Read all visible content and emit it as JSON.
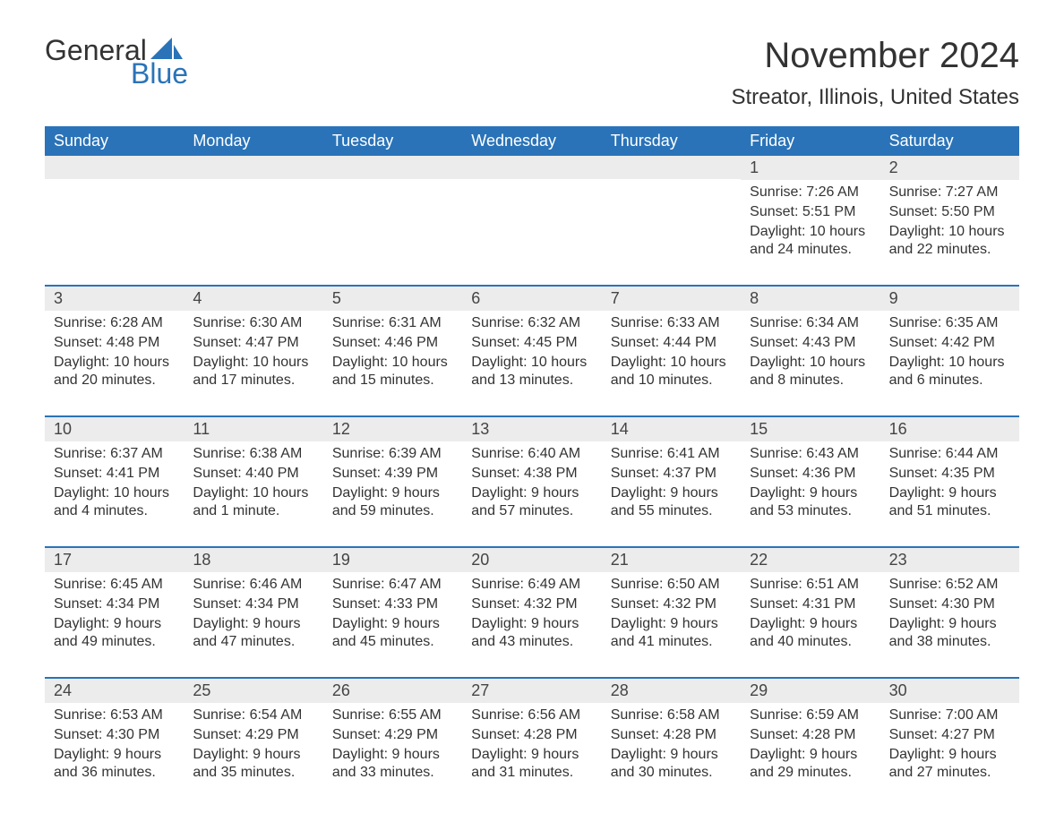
{
  "logo": {
    "text_general": "General",
    "text_blue": "Blue",
    "sail_color": "#2a73b8"
  },
  "title": "November 2024",
  "location": "Streator, Illinois, United States",
  "colors": {
    "header_bg": "#2a73b8",
    "header_text": "#ffffff",
    "daynum_bg": "#ececec",
    "week_border": "#2a73b8",
    "body_text": "#333333"
  },
  "weekdays": [
    "Sunday",
    "Monday",
    "Tuesday",
    "Wednesday",
    "Thursday",
    "Friday",
    "Saturday"
  ],
  "weeks": [
    [
      null,
      null,
      null,
      null,
      null,
      {
        "n": "1",
        "sunrise": "Sunrise: 7:26 AM",
        "sunset": "Sunset: 5:51 PM",
        "daylight": "Daylight: 10 hours and 24 minutes."
      },
      {
        "n": "2",
        "sunrise": "Sunrise: 7:27 AM",
        "sunset": "Sunset: 5:50 PM",
        "daylight": "Daylight: 10 hours and 22 minutes."
      }
    ],
    [
      {
        "n": "3",
        "sunrise": "Sunrise: 6:28 AM",
        "sunset": "Sunset: 4:48 PM",
        "daylight": "Daylight: 10 hours and 20 minutes."
      },
      {
        "n": "4",
        "sunrise": "Sunrise: 6:30 AM",
        "sunset": "Sunset: 4:47 PM",
        "daylight": "Daylight: 10 hours and 17 minutes."
      },
      {
        "n": "5",
        "sunrise": "Sunrise: 6:31 AM",
        "sunset": "Sunset: 4:46 PM",
        "daylight": "Daylight: 10 hours and 15 minutes."
      },
      {
        "n": "6",
        "sunrise": "Sunrise: 6:32 AM",
        "sunset": "Sunset: 4:45 PM",
        "daylight": "Daylight: 10 hours and 13 minutes."
      },
      {
        "n": "7",
        "sunrise": "Sunrise: 6:33 AM",
        "sunset": "Sunset: 4:44 PM",
        "daylight": "Daylight: 10 hours and 10 minutes."
      },
      {
        "n": "8",
        "sunrise": "Sunrise: 6:34 AM",
        "sunset": "Sunset: 4:43 PM",
        "daylight": "Daylight: 10 hours and 8 minutes."
      },
      {
        "n": "9",
        "sunrise": "Sunrise: 6:35 AM",
        "sunset": "Sunset: 4:42 PM",
        "daylight": "Daylight: 10 hours and 6 minutes."
      }
    ],
    [
      {
        "n": "10",
        "sunrise": "Sunrise: 6:37 AM",
        "sunset": "Sunset: 4:41 PM",
        "daylight": "Daylight: 10 hours and 4 minutes."
      },
      {
        "n": "11",
        "sunrise": "Sunrise: 6:38 AM",
        "sunset": "Sunset: 4:40 PM",
        "daylight": "Daylight: 10 hours and 1 minute."
      },
      {
        "n": "12",
        "sunrise": "Sunrise: 6:39 AM",
        "sunset": "Sunset: 4:39 PM",
        "daylight": "Daylight: 9 hours and 59 minutes."
      },
      {
        "n": "13",
        "sunrise": "Sunrise: 6:40 AM",
        "sunset": "Sunset: 4:38 PM",
        "daylight": "Daylight: 9 hours and 57 minutes."
      },
      {
        "n": "14",
        "sunrise": "Sunrise: 6:41 AM",
        "sunset": "Sunset: 4:37 PM",
        "daylight": "Daylight: 9 hours and 55 minutes."
      },
      {
        "n": "15",
        "sunrise": "Sunrise: 6:43 AM",
        "sunset": "Sunset: 4:36 PM",
        "daylight": "Daylight: 9 hours and 53 minutes."
      },
      {
        "n": "16",
        "sunrise": "Sunrise: 6:44 AM",
        "sunset": "Sunset: 4:35 PM",
        "daylight": "Daylight: 9 hours and 51 minutes."
      }
    ],
    [
      {
        "n": "17",
        "sunrise": "Sunrise: 6:45 AM",
        "sunset": "Sunset: 4:34 PM",
        "daylight": "Daylight: 9 hours and 49 minutes."
      },
      {
        "n": "18",
        "sunrise": "Sunrise: 6:46 AM",
        "sunset": "Sunset: 4:34 PM",
        "daylight": "Daylight: 9 hours and 47 minutes."
      },
      {
        "n": "19",
        "sunrise": "Sunrise: 6:47 AM",
        "sunset": "Sunset: 4:33 PM",
        "daylight": "Daylight: 9 hours and 45 minutes."
      },
      {
        "n": "20",
        "sunrise": "Sunrise: 6:49 AM",
        "sunset": "Sunset: 4:32 PM",
        "daylight": "Daylight: 9 hours and 43 minutes."
      },
      {
        "n": "21",
        "sunrise": "Sunrise: 6:50 AM",
        "sunset": "Sunset: 4:32 PM",
        "daylight": "Daylight: 9 hours and 41 minutes."
      },
      {
        "n": "22",
        "sunrise": "Sunrise: 6:51 AM",
        "sunset": "Sunset: 4:31 PM",
        "daylight": "Daylight: 9 hours and 40 minutes."
      },
      {
        "n": "23",
        "sunrise": "Sunrise: 6:52 AM",
        "sunset": "Sunset: 4:30 PM",
        "daylight": "Daylight: 9 hours and 38 minutes."
      }
    ],
    [
      {
        "n": "24",
        "sunrise": "Sunrise: 6:53 AM",
        "sunset": "Sunset: 4:30 PM",
        "daylight": "Daylight: 9 hours and 36 minutes."
      },
      {
        "n": "25",
        "sunrise": "Sunrise: 6:54 AM",
        "sunset": "Sunset: 4:29 PM",
        "daylight": "Daylight: 9 hours and 35 minutes."
      },
      {
        "n": "26",
        "sunrise": "Sunrise: 6:55 AM",
        "sunset": "Sunset: 4:29 PM",
        "daylight": "Daylight: 9 hours and 33 minutes."
      },
      {
        "n": "27",
        "sunrise": "Sunrise: 6:56 AM",
        "sunset": "Sunset: 4:28 PM",
        "daylight": "Daylight: 9 hours and 31 minutes."
      },
      {
        "n": "28",
        "sunrise": "Sunrise: 6:58 AM",
        "sunset": "Sunset: 4:28 PM",
        "daylight": "Daylight: 9 hours and 30 minutes."
      },
      {
        "n": "29",
        "sunrise": "Sunrise: 6:59 AM",
        "sunset": "Sunset: 4:28 PM",
        "daylight": "Daylight: 9 hours and 29 minutes."
      },
      {
        "n": "30",
        "sunrise": "Sunrise: 7:00 AM",
        "sunset": "Sunset: 4:27 PM",
        "daylight": "Daylight: 9 hours and 27 minutes."
      }
    ]
  ]
}
